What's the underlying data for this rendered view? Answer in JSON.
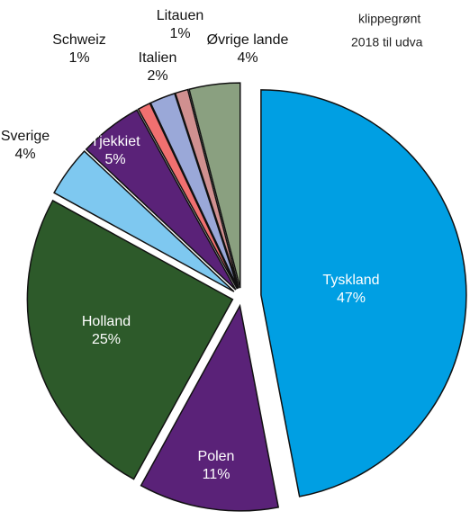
{
  "chart_data": {
    "type": "pie",
    "categories": [
      "Tyskland",
      "Polen",
      "Holland",
      "Sverige",
      "Tjekkiet",
      "Schweiz",
      "Italien",
      "Litauen",
      "Øvrige lande"
    ],
    "values": [
      47,
      11,
      25,
      4,
      5,
      1,
      2,
      1,
      4
    ],
    "value_labels": [
      "47%",
      "11%",
      "25%",
      "4%",
      "5%",
      "1%",
      "2%",
      "1%",
      "4%"
    ],
    "colors": [
      "#009fe3",
      "#5a2278",
      "#2d5a2a",
      "#7ec8f0",
      "#5a2278",
      "#f07070",
      "#9aa8d8",
      "#d09090",
      "#8aa080"
    ],
    "note": [
      "klippegrønt",
      "2018 til udva"
    ]
  }
}
